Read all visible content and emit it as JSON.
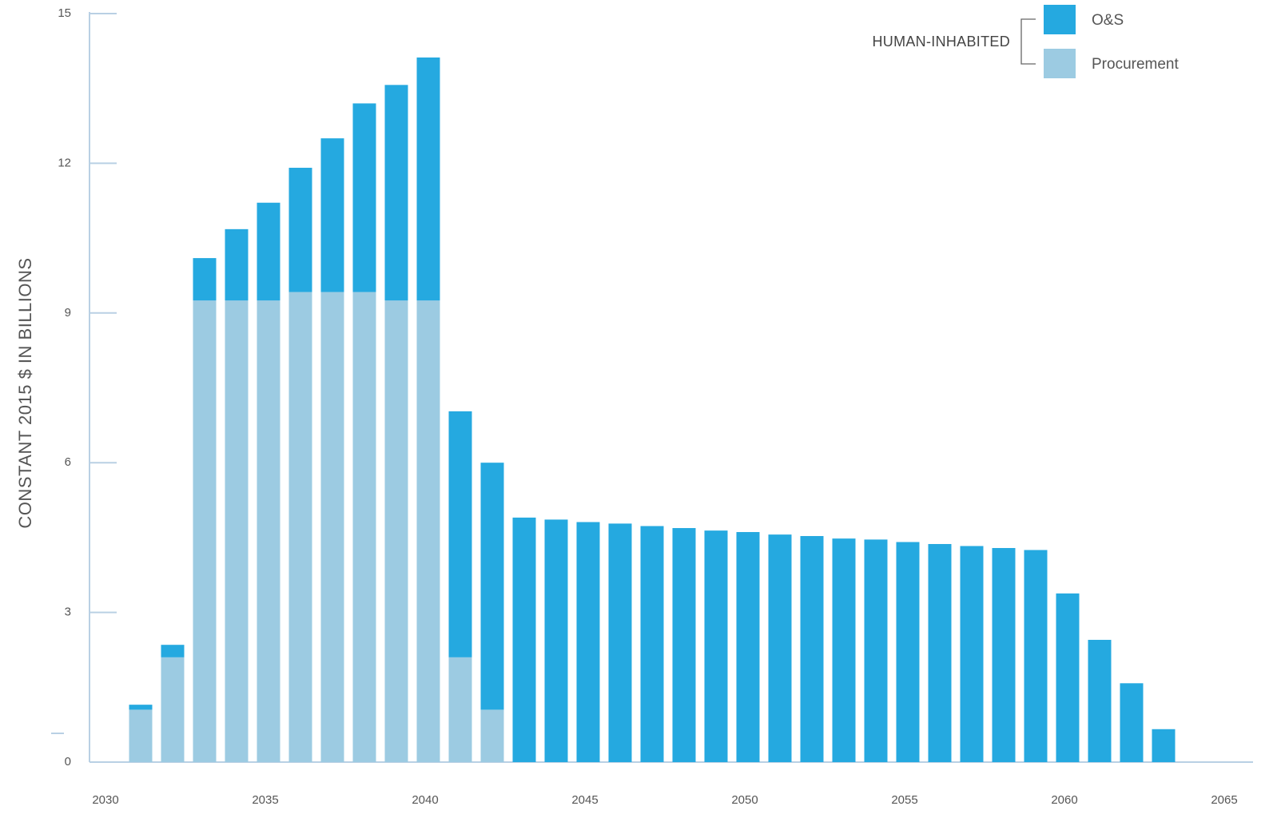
{
  "chart_data": {
    "type": "bar",
    "stacked": true,
    "title": "",
    "xlabel": "",
    "ylabel": "CONSTANT 2015 $ IN BILLIONS",
    "ylim": [
      0,
      15
    ],
    "xlim": [
      2030,
      2065
    ],
    "y_ticks": [
      0,
      3,
      6,
      9,
      12,
      15
    ],
    "x_ticks": [
      2030,
      2035,
      2040,
      2045,
      2050,
      2055,
      2060,
      2065
    ],
    "categories": [
      2031,
      2032,
      2033,
      2034,
      2035,
      2036,
      2037,
      2038,
      2039,
      2040,
      2041,
      2042,
      2043,
      2044,
      2045,
      2046,
      2047,
      2048,
      2049,
      2050,
      2051,
      2052,
      2053,
      2054,
      2055,
      2056,
      2057,
      2058,
      2059,
      2060,
      2061,
      2062,
      2063
    ],
    "series": [
      {
        "name": "Procurement",
        "color": "#9ccbe2",
        "values": [
          1.05,
          2.1,
          9.25,
          9.25,
          9.25,
          9.42,
          9.42,
          9.42,
          9.25,
          9.25,
          2.1,
          1.05,
          0,
          0,
          0,
          0,
          0,
          0,
          0,
          0,
          0,
          0,
          0,
          0,
          0,
          0,
          0,
          0,
          0,
          0,
          0,
          0,
          0
        ]
      },
      {
        "name": "O&S",
        "color": "#25a9e0",
        "values": [
          0.1,
          0.25,
          0.85,
          1.43,
          1.96,
          2.49,
          3.08,
          3.78,
          4.32,
          4.87,
          4.93,
          4.95,
          4.9,
          4.86,
          4.81,
          4.78,
          4.73,
          4.69,
          4.64,
          4.61,
          4.56,
          4.53,
          4.48,
          4.46,
          4.41,
          4.37,
          4.33,
          4.29,
          4.25,
          3.38,
          2.45,
          1.58,
          0.66
        ]
      }
    ],
    "legend": {
      "group_label": "HUMAN-INHABITED",
      "placement": "top-right",
      "items": [
        "O&S",
        "Procurement"
      ]
    },
    "grid": false
  }
}
